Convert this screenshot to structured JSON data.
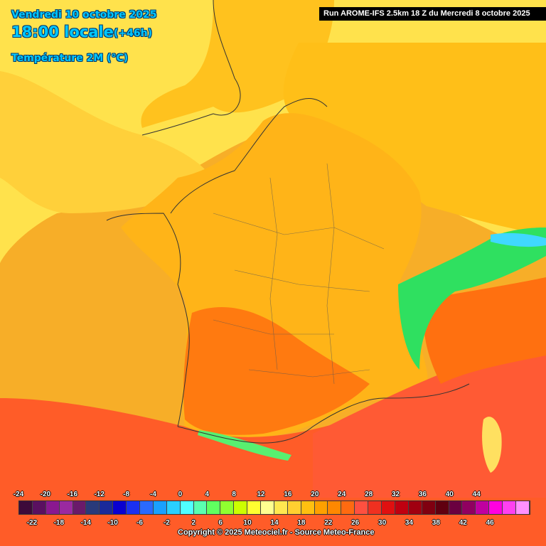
{
  "header": {
    "date": "Vendredi 10 octobre 2025",
    "time": "18:00 locale",
    "offset": "(+46h)",
    "variable": "Température 2M (°C)"
  },
  "run_info": "Run AROME-IFS 2.5km 18 Z du Mercredi 8 octobre 2025",
  "legend": {
    "top_ticks": [
      "-24",
      "-20",
      "-16",
      "-12",
      "-8",
      "-4",
      "0",
      "4",
      "8",
      "12",
      "16",
      "20",
      "24",
      "28",
      "32",
      "36",
      "40",
      "44"
    ],
    "bottom_ticks": [
      "-22",
      "-18",
      "-14",
      "-10",
      "-6",
      "-2",
      "2",
      "6",
      "10",
      "14",
      "18",
      "22",
      "26",
      "30",
      "34",
      "38",
      "42",
      "46"
    ],
    "colors": [
      "#3d0a3a",
      "#5a1060",
      "#8a1890",
      "#9a2aa0",
      "#6a1a6a",
      "#2a3a7a",
      "#1a2a9a",
      "#0a00d0",
      "#1a30f0",
      "#2a6aff",
      "#1aa0ff",
      "#2ad0ff",
      "#50ffff",
      "#5affb0",
      "#60ff60",
      "#90ff30",
      "#ccff00",
      "#ffff30",
      "#ffff90",
      "#ffe850",
      "#ffd030",
      "#ffc010",
      "#ffa000",
      "#ff8800",
      "#ff6a10",
      "#ff5040",
      "#f03020",
      "#e01010",
      "#c00010",
      "#a00010",
      "#800010",
      "#600010",
      "#6a0040",
      "#900060",
      "#c000a0",
      "#ff00e0",
      "#ff40f0",
      "#ff90ff"
    ]
  },
  "copyright": "Copyright © 2025 Meteociel.fr - Source Meteo-France",
  "colors": {
    "sea_warm": "#f0a020",
    "north_cool": "#ffe04a",
    "land_mid": "#ffc020",
    "land_warm": "#ff8000",
    "south_hot": "#ff5a2a",
    "alps_cold": "#30e060"
  }
}
